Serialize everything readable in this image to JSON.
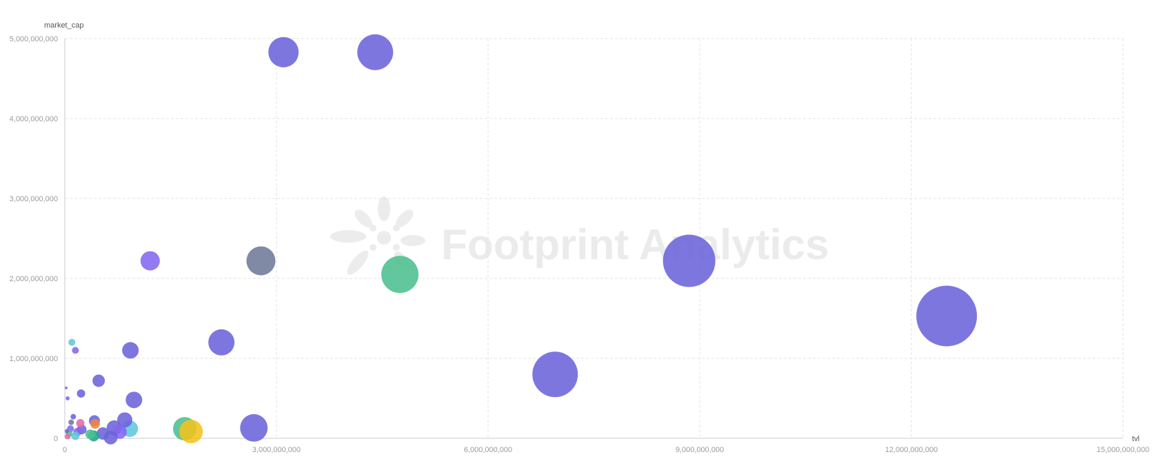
{
  "watermark": {
    "text": "Footprint Analytics"
  },
  "chart_data": {
    "type": "scatter",
    "subtype": "bubble",
    "xlabel": "tvl",
    "ylabel": "market_cap",
    "xlim": [
      0,
      15000000000
    ],
    "ylim": [
      0,
      5000000000
    ],
    "x_ticks": [
      0,
      3000000000,
      6000000000,
      9000000000,
      12000000000,
      15000000000
    ],
    "x_tick_labels": [
      "0",
      "3,000,000,000",
      "6,000,000,000",
      "9,000,000,000",
      "12,000,000,000",
      "15,000,000,000"
    ],
    "y_ticks": [
      0,
      1000000000,
      2000000000,
      3000000000,
      4000000000,
      5000000000
    ],
    "y_tick_labels": [
      "0",
      "1,000,000,000",
      "2,000,000,000",
      "3,000,000,000",
      "4,000,000,000",
      "5,000,000,000"
    ],
    "grid": true,
    "colors": {
      "purple": "#6c63db",
      "violet": "#8466f0",
      "slate": "#6e7a99",
      "green": "#4cbf8f",
      "yellow": "#f2c31c",
      "cyan": "#5ec8dc",
      "orange": "#f0883a",
      "pink": "#e46aa8",
      "teal": "#21a58c"
    },
    "points": [
      {
        "x": 12500000000,
        "y": 1530000000,
        "size": 44,
        "color": "purple"
      },
      {
        "x": 8850000000,
        "y": 2220000000,
        "size": 38,
        "color": "purple"
      },
      {
        "x": 6950000000,
        "y": 800000000,
        "size": 33,
        "color": "purple"
      },
      {
        "x": 4400000000,
        "y": 4830000000,
        "size": 26,
        "color": "purple"
      },
      {
        "x": 3100000000,
        "y": 4830000000,
        "size": 22,
        "color": "purple"
      },
      {
        "x": 4750000000,
        "y": 2050000000,
        "size": 27,
        "color": "green"
      },
      {
        "x": 2780000000,
        "y": 2220000000,
        "size": 21,
        "color": "slate"
      },
      {
        "x": 2220000000,
        "y": 1200000000,
        "size": 19,
        "color": "purple"
      },
      {
        "x": 2680000000,
        "y": 130000000,
        "size": 20,
        "color": "purple"
      },
      {
        "x": 1700000000,
        "y": 120000000,
        "size": 17,
        "color": "green"
      },
      {
        "x": 1790000000,
        "y": 85000000,
        "size": 17,
        "color": "yellow"
      },
      {
        "x": 1210000000,
        "y": 2220000000,
        "size": 14,
        "color": "violet"
      },
      {
        "x": 930000000,
        "y": 1100000000,
        "size": 12,
        "color": "purple"
      },
      {
        "x": 980000000,
        "y": 480000000,
        "size": 12,
        "color": "purple"
      },
      {
        "x": 480000000,
        "y": 720000000,
        "size": 9,
        "color": "purple"
      },
      {
        "x": 230000000,
        "y": 560000000,
        "size": 6,
        "color": "purple"
      },
      {
        "x": 150000000,
        "y": 1100000000,
        "size": 5,
        "color": "violet"
      },
      {
        "x": 100000000,
        "y": 1200000000,
        "size": 5,
        "color": "cyan"
      },
      {
        "x": 40000000,
        "y": 500000000,
        "size": 3,
        "color": "violet"
      },
      {
        "x": 20000000,
        "y": 630000000,
        "size": 2,
        "color": "violet"
      },
      {
        "x": 850000000,
        "y": 230000000,
        "size": 11,
        "color": "purple"
      },
      {
        "x": 700000000,
        "y": 130000000,
        "size": 11,
        "color": "purple"
      },
      {
        "x": 920000000,
        "y": 120000000,
        "size": 12,
        "color": "cyan"
      },
      {
        "x": 780000000,
        "y": 80000000,
        "size": 10,
        "color": "violet"
      },
      {
        "x": 650000000,
        "y": 10000000,
        "size": 10,
        "color": "purple"
      },
      {
        "x": 540000000,
        "y": 60000000,
        "size": 9,
        "color": "purple"
      },
      {
        "x": 420000000,
        "y": 220000000,
        "size": 8,
        "color": "purple"
      },
      {
        "x": 430000000,
        "y": 180000000,
        "size": 7,
        "color": "orange"
      },
      {
        "x": 410000000,
        "y": 30000000,
        "size": 8,
        "color": "teal"
      },
      {
        "x": 360000000,
        "y": 50000000,
        "size": 7,
        "color": "green"
      },
      {
        "x": 220000000,
        "y": 190000000,
        "size": 6,
        "color": "pink"
      },
      {
        "x": 240000000,
        "y": 110000000,
        "size": 7,
        "color": "purple"
      },
      {
        "x": 180000000,
        "y": 80000000,
        "size": 6,
        "color": "violet"
      },
      {
        "x": 150000000,
        "y": 30000000,
        "size": 6,
        "color": "cyan"
      },
      {
        "x": 120000000,
        "y": 270000000,
        "size": 4,
        "color": "purple"
      },
      {
        "x": 90000000,
        "y": 200000000,
        "size": 4,
        "color": "slate"
      },
      {
        "x": 80000000,
        "y": 120000000,
        "size": 5,
        "color": "violet"
      },
      {
        "x": 60000000,
        "y": 60000000,
        "size": 5,
        "color": "green"
      },
      {
        "x": 40000000,
        "y": 20000000,
        "size": 4,
        "color": "pink"
      },
      {
        "x": 30000000,
        "y": 90000000,
        "size": 3,
        "color": "purple"
      }
    ]
  }
}
